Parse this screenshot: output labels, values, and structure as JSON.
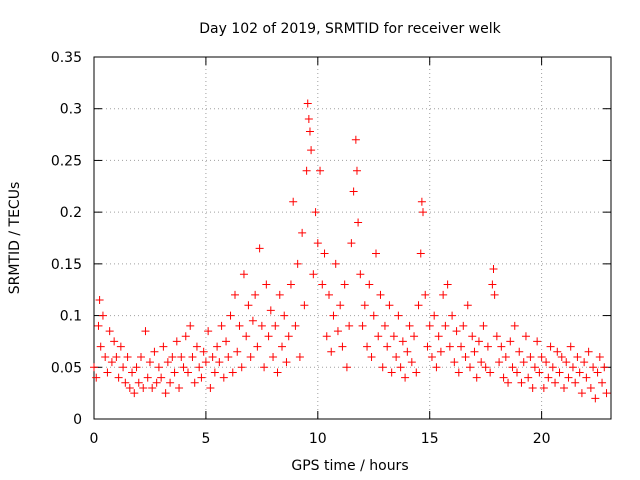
{
  "chart_data": {
    "type": "scatter",
    "title": "Day 102 of 2019, SRMTID for receiver welk",
    "xlabel": "GPS time / hours",
    "ylabel": "SRMTID / TECUs",
    "xlim": [
      0,
      23.1
    ],
    "ylim": [
      0,
      0.35
    ],
    "xticks": [
      0,
      5,
      10,
      15,
      20
    ],
    "xtick_labels": [
      "0",
      "5",
      "10",
      "15",
      "20"
    ],
    "yticks": [
      0,
      0.05,
      0.1,
      0.15,
      0.2,
      0.25,
      0.3,
      0.35
    ],
    "ytick_labels": [
      "0",
      "0.05",
      "0.1",
      "0.15",
      "0.2",
      "0.25",
      "0.3",
      "0.35"
    ],
    "grid": true,
    "marker": "+",
    "color": "#ff0000",
    "series": [
      {
        "name": "SRMTID",
        "points": [
          [
            0.0,
            0.05
          ],
          [
            0.1,
            0.04
          ],
          [
            0.2,
            0.09
          ],
          [
            0.25,
            0.115
          ],
          [
            0.3,
            0.07
          ],
          [
            0.4,
            0.1
          ],
          [
            0.5,
            0.06
          ],
          [
            0.6,
            0.045
          ],
          [
            0.7,
            0.085
          ],
          [
            0.8,
            0.055
          ],
          [
            0.9,
            0.075
          ],
          [
            1.0,
            0.06
          ],
          [
            1.1,
            0.04
          ],
          [
            1.2,
            0.07
          ],
          [
            1.3,
            0.05
          ],
          [
            1.4,
            0.035
          ],
          [
            1.5,
            0.06
          ],
          [
            1.6,
            0.03
          ],
          [
            1.7,
            0.045
          ],
          [
            1.8,
            0.025
          ],
          [
            1.9,
            0.05
          ],
          [
            2.0,
            0.035
          ],
          [
            2.1,
            0.06
          ],
          [
            2.2,
            0.03
          ],
          [
            2.3,
            0.085
          ],
          [
            2.4,
            0.04
          ],
          [
            2.5,
            0.055
          ],
          [
            2.6,
            0.03
          ],
          [
            2.7,
            0.065
          ],
          [
            2.8,
            0.035
          ],
          [
            2.9,
            0.05
          ],
          [
            3.0,
            0.04
          ],
          [
            3.1,
            0.07
          ],
          [
            3.2,
            0.025
          ],
          [
            3.3,
            0.055
          ],
          [
            3.4,
            0.035
          ],
          [
            3.5,
            0.06
          ],
          [
            3.6,
            0.045
          ],
          [
            3.7,
            0.075
          ],
          [
            3.8,
            0.03
          ],
          [
            3.9,
            0.06
          ],
          [
            4.0,
            0.05
          ],
          [
            4.1,
            0.08
          ],
          [
            4.2,
            0.045
          ],
          [
            4.3,
            0.09
          ],
          [
            4.4,
            0.06
          ],
          [
            4.5,
            0.035
          ],
          [
            4.6,
            0.07
          ],
          [
            4.7,
            0.05
          ],
          [
            4.8,
            0.04
          ],
          [
            4.9,
            0.065
          ],
          [
            5.0,
            0.055
          ],
          [
            5.1,
            0.085
          ],
          [
            5.2,
            0.03
          ],
          [
            5.3,
            0.06
          ],
          [
            5.4,
            0.045
          ],
          [
            5.5,
            0.07
          ],
          [
            5.6,
            0.055
          ],
          [
            5.7,
            0.09
          ],
          [
            5.8,
            0.04
          ],
          [
            5.9,
            0.075
          ],
          [
            6.0,
            0.06
          ],
          [
            6.1,
            0.1
          ],
          [
            6.2,
            0.045
          ],
          [
            6.3,
            0.12
          ],
          [
            6.4,
            0.065
          ],
          [
            6.5,
            0.09
          ],
          [
            6.6,
            0.05
          ],
          [
            6.7,
            0.14
          ],
          [
            6.8,
            0.08
          ],
          [
            6.9,
            0.11
          ],
          [
            7.0,
            0.06
          ],
          [
            7.1,
            0.095
          ],
          [
            7.2,
            0.12
          ],
          [
            7.3,
            0.07
          ],
          [
            7.4,
            0.165
          ],
          [
            7.5,
            0.09
          ],
          [
            7.6,
            0.05
          ],
          [
            7.7,
            0.13
          ],
          [
            7.8,
            0.08
          ],
          [
            7.9,
            0.105
          ],
          [
            8.0,
            0.06
          ],
          [
            8.1,
            0.09
          ],
          [
            8.2,
            0.045
          ],
          [
            8.3,
            0.12
          ],
          [
            8.4,
            0.07
          ],
          [
            8.5,
            0.1
          ],
          [
            8.6,
            0.055
          ],
          [
            8.7,
            0.08
          ],
          [
            8.8,
            0.13
          ],
          [
            8.9,
            0.21
          ],
          [
            9.0,
            0.09
          ],
          [
            9.1,
            0.15
          ],
          [
            9.2,
            0.06
          ],
          [
            9.3,
            0.18
          ],
          [
            9.4,
            0.11
          ],
          [
            9.5,
            0.24
          ],
          [
            9.55,
            0.305
          ],
          [
            9.6,
            0.29
          ],
          [
            9.65,
            0.278
          ],
          [
            9.7,
            0.26
          ],
          [
            9.8,
            0.14
          ],
          [
            9.9,
            0.2
          ],
          [
            10.0,
            0.17
          ],
          [
            10.1,
            0.24
          ],
          [
            10.2,
            0.13
          ],
          [
            10.3,
            0.16
          ],
          [
            10.4,
            0.08
          ],
          [
            10.5,
            0.12
          ],
          [
            10.6,
            0.065
          ],
          [
            10.7,
            0.1
          ],
          [
            10.8,
            0.15
          ],
          [
            10.9,
            0.085
          ],
          [
            11.0,
            0.11
          ],
          [
            11.1,
            0.07
          ],
          [
            11.2,
            0.13
          ],
          [
            11.3,
            0.05
          ],
          [
            11.4,
            0.09
          ],
          [
            11.5,
            0.17
          ],
          [
            11.6,
            0.22
          ],
          [
            11.7,
            0.27
          ],
          [
            11.75,
            0.24
          ],
          [
            11.8,
            0.19
          ],
          [
            11.9,
            0.14
          ],
          [
            12.0,
            0.09
          ],
          [
            12.1,
            0.11
          ],
          [
            12.2,
            0.07
          ],
          [
            12.3,
            0.13
          ],
          [
            12.4,
            0.06
          ],
          [
            12.5,
            0.1
          ],
          [
            12.6,
            0.16
          ],
          [
            12.7,
            0.08
          ],
          [
            12.8,
            0.12
          ],
          [
            12.9,
            0.05
          ],
          [
            13.0,
            0.09
          ],
          [
            13.1,
            0.07
          ],
          [
            13.2,
            0.11
          ],
          [
            13.3,
            0.045
          ],
          [
            13.4,
            0.08
          ],
          [
            13.5,
            0.06
          ],
          [
            13.6,
            0.1
          ],
          [
            13.7,
            0.05
          ],
          [
            13.8,
            0.075
          ],
          [
            13.9,
            0.04
          ],
          [
            14.0,
            0.065
          ],
          [
            14.1,
            0.09
          ],
          [
            14.2,
            0.055
          ],
          [
            14.3,
            0.08
          ],
          [
            14.4,
            0.045
          ],
          [
            14.5,
            0.11
          ],
          [
            14.6,
            0.16
          ],
          [
            14.65,
            0.21
          ],
          [
            14.7,
            0.2
          ],
          [
            14.8,
            0.12
          ],
          [
            14.9,
            0.07
          ],
          [
            15.0,
            0.09
          ],
          [
            15.1,
            0.06
          ],
          [
            15.2,
            0.1
          ],
          [
            15.3,
            0.05
          ],
          [
            15.4,
            0.08
          ],
          [
            15.5,
            0.065
          ],
          [
            15.6,
            0.12
          ],
          [
            15.7,
            0.09
          ],
          [
            15.8,
            0.13
          ],
          [
            15.9,
            0.07
          ],
          [
            16.0,
            0.1
          ],
          [
            16.1,
            0.055
          ],
          [
            16.2,
            0.085
          ],
          [
            16.3,
            0.045
          ],
          [
            16.4,
            0.07
          ],
          [
            16.5,
            0.09
          ],
          [
            16.6,
            0.06
          ],
          [
            16.7,
            0.11
          ],
          [
            16.8,
            0.05
          ],
          [
            16.9,
            0.08
          ],
          [
            17.0,
            0.065
          ],
          [
            17.1,
            0.04
          ],
          [
            17.2,
            0.075
          ],
          [
            17.3,
            0.055
          ],
          [
            17.4,
            0.09
          ],
          [
            17.5,
            0.05
          ],
          [
            17.6,
            0.07
          ],
          [
            17.7,
            0.045
          ],
          [
            17.8,
            0.13
          ],
          [
            17.85,
            0.145
          ],
          [
            17.9,
            0.12
          ],
          [
            18.0,
            0.08
          ],
          [
            18.1,
            0.055
          ],
          [
            18.2,
            0.07
          ],
          [
            18.3,
            0.04
          ],
          [
            18.4,
            0.06
          ],
          [
            18.5,
            0.035
          ],
          [
            18.6,
            0.075
          ],
          [
            18.7,
            0.05
          ],
          [
            18.8,
            0.09
          ],
          [
            18.9,
            0.045
          ],
          [
            19.0,
            0.065
          ],
          [
            19.1,
            0.035
          ],
          [
            19.2,
            0.055
          ],
          [
            19.3,
            0.08
          ],
          [
            19.4,
            0.04
          ],
          [
            19.5,
            0.06
          ],
          [
            19.6,
            0.03
          ],
          [
            19.7,
            0.05
          ],
          [
            19.8,
            0.075
          ],
          [
            19.9,
            0.045
          ],
          [
            20.0,
            0.06
          ],
          [
            20.1,
            0.03
          ],
          [
            20.2,
            0.055
          ],
          [
            20.3,
            0.04
          ],
          [
            20.4,
            0.07
          ],
          [
            20.5,
            0.05
          ],
          [
            20.6,
            0.035
          ],
          [
            20.7,
            0.065
          ],
          [
            20.8,
            0.045
          ],
          [
            20.9,
            0.06
          ],
          [
            21.0,
            0.03
          ],
          [
            21.1,
            0.055
          ],
          [
            21.2,
            0.04
          ],
          [
            21.3,
            0.07
          ],
          [
            21.4,
            0.05
          ],
          [
            21.5,
            0.035
          ],
          [
            21.6,
            0.06
          ],
          [
            21.7,
            0.045
          ],
          [
            21.8,
            0.025
          ],
          [
            21.9,
            0.055
          ],
          [
            22.0,
            0.04
          ],
          [
            22.1,
            0.065
          ],
          [
            22.2,
            0.03
          ],
          [
            22.3,
            0.05
          ],
          [
            22.4,
            0.02
          ],
          [
            22.5,
            0.045
          ],
          [
            22.6,
            0.06
          ],
          [
            22.7,
            0.035
          ],
          [
            22.8,
            0.05
          ],
          [
            22.9,
            0.025
          ]
        ]
      }
    ]
  }
}
